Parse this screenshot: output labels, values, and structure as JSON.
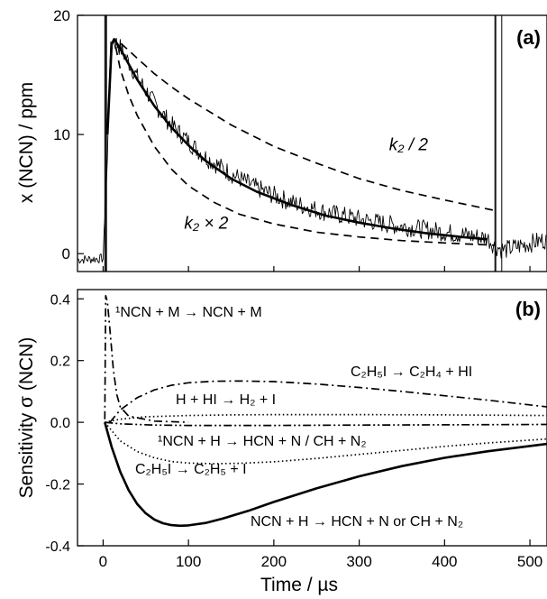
{
  "chart_data": [
    {
      "type": "line",
      "panel_label": "(a)",
      "ylabel": "x (NCN) / ppm",
      "xlim": [
        -30,
        520
      ],
      "ylim": [
        -1.5,
        20
      ],
      "y_ticks": [
        0,
        10,
        20
      ],
      "grid": false,
      "annotations": [
        {
          "text": "k₂ / 2",
          "x": 335,
          "y": 8.7
        },
        {
          "text": "k₂ × 2",
          "x": 95,
          "y": 2.1
        }
      ],
      "markers": [
        {
          "type": "vertical-lines",
          "x": [
            2,
            3,
            4
          ]
        },
        {
          "type": "vertical-lines",
          "x": [
            459,
            460,
            467
          ]
        }
      ],
      "series": [
        {
          "role": "measurement",
          "style": "noisy-thin",
          "x": [
            -30,
            0,
            5,
            8,
            11,
            20,
            40,
            60,
            80,
            100,
            120,
            150,
            180,
            220,
            260,
            300,
            340,
            380,
            420,
            450,
            460,
            470,
            490,
            520
          ],
          "y": [
            -0.5,
            -0.4,
            8.0,
            16.5,
            18.0,
            17.3,
            14.8,
            12.6,
            10.8,
            9.4,
            8.1,
            6.7,
            5.5,
            4.3,
            3.5,
            2.9,
            2.4,
            2.0,
            1.6,
            1.3,
            0.6,
            0.3,
            0.7,
            1.2
          ]
        },
        {
          "role": "fit",
          "style": "solid-thick",
          "x": [
            5,
            10,
            13,
            20,
            40,
            60,
            80,
            100,
            120,
            150,
            180,
            220,
            260,
            300,
            340,
            380,
            420,
            450
          ],
          "y": [
            10,
            17.6,
            18.0,
            17.2,
            14.6,
            12.4,
            10.6,
            9.1,
            7.8,
            6.3,
            5.2,
            4.1,
            3.2,
            2.6,
            2.1,
            1.7,
            1.4,
            1.2
          ]
        },
        {
          "role": "k2 / 2",
          "style": "dashed",
          "x": [
            10,
            13,
            20,
            40,
            60,
            80,
            100,
            150,
            200,
            250,
            300,
            350,
            400,
            460
          ],
          "y": [
            17.6,
            18.0,
            17.7,
            16.4,
            15.1,
            14.0,
            13.0,
            10.8,
            9.0,
            7.6,
            6.3,
            5.3,
            4.5,
            3.6
          ]
        },
        {
          "role": "k2 × 2",
          "style": "dashed",
          "x": [
            10,
            13,
            20,
            30,
            40,
            60,
            80,
            100,
            130,
            160,
            200,
            250,
            300,
            350,
            400,
            460
          ],
          "y": [
            17.6,
            18.0,
            15.5,
            13.3,
            11.6,
            9.0,
            7.1,
            5.7,
            4.3,
            3.3,
            2.5,
            1.8,
            1.4,
            1.1,
            0.9,
            0.7
          ]
        }
      ]
    },
    {
      "type": "line",
      "panel_label": "(b)",
      "xlabel": "Time / µs",
      "ylabel": "Sensitivity σ (NCN)",
      "xlim": [
        -30,
        520
      ],
      "ylim": [
        -0.4,
        0.43
      ],
      "x_ticks": [
        0,
        100,
        200,
        300,
        400,
        500
      ],
      "y_ticks": [
        -0.4,
        -0.2,
        0.0,
        0.2,
        0.4
      ],
      "grid": false,
      "series_labels": [
        {
          "text": "¹NCN + M → NCN + M"
        },
        {
          "text": "C₂H₅I → C₂H₄ + HI"
        },
        {
          "text": "H + HI → H₂ + I"
        },
        {
          "text": "¹NCN + H → HCN + N / CH + N₂"
        },
        {
          "text": "C₂H₅I → C₂H₅ + I"
        },
        {
          "text": "NCN + H → HCN + N or CH + N₂"
        }
      ],
      "series": [
        {
          "style": "dash-dot",
          "x": [
            2,
            3,
            5,
            8,
            12,
            16,
            20,
            30,
            60,
            100
          ],
          "y": [
            0.01,
            0.41,
            0.39,
            0.3,
            0.17,
            0.09,
            0.05,
            0.02,
            0.004,
            0.0
          ]
        },
        {
          "style": "dash-dot",
          "x": [
            8,
            20,
            40,
            60,
            80,
            100,
            130,
            160,
            200,
            250,
            300,
            350,
            400,
            450,
            520
          ],
          "y": [
            0.0,
            0.04,
            0.08,
            0.105,
            0.12,
            0.128,
            0.133,
            0.134,
            0.132,
            0.124,
            0.113,
            0.1,
            0.086,
            0.072,
            0.05
          ]
        },
        {
          "style": "dotted",
          "x": [
            2,
            20,
            50,
            100,
            150,
            200,
            300,
            400,
            520
          ],
          "y": [
            0.0,
            0.01,
            0.018,
            0.022,
            0.024,
            0.025,
            0.025,
            0.024,
            0.022
          ]
        },
        {
          "style": "dash-dot-dot",
          "x": [
            2,
            20,
            60,
            100,
            200,
            300,
            400,
            520
          ],
          "y": [
            0.0,
            -0.005,
            -0.009,
            -0.01,
            -0.01,
            -0.009,
            -0.008,
            -0.007
          ]
        },
        {
          "style": "dotted",
          "x": [
            2,
            20,
            40,
            60,
            80,
            100,
            130,
            160,
            200,
            250,
            300,
            350,
            400,
            450,
            520
          ],
          "y": [
            0.0,
            -0.06,
            -0.095,
            -0.115,
            -0.127,
            -0.132,
            -0.134,
            -0.133,
            -0.128,
            -0.117,
            -0.104,
            -0.091,
            -0.078,
            -0.067,
            -0.054
          ]
        },
        {
          "style": "solid-thick",
          "x": [
            2,
            10,
            20,
            30,
            40,
            50,
            60,
            70,
            80,
            90,
            100,
            120,
            140,
            170,
            200,
            250,
            300,
            350,
            400,
            450,
            520
          ],
          "y": [
            0.0,
            -0.08,
            -0.16,
            -0.22,
            -0.265,
            -0.295,
            -0.315,
            -0.327,
            -0.333,
            -0.335,
            -0.334,
            -0.326,
            -0.312,
            -0.287,
            -0.258,
            -0.214,
            -0.175,
            -0.142,
            -0.115,
            -0.094,
            -0.07
          ]
        }
      ]
    }
  ]
}
